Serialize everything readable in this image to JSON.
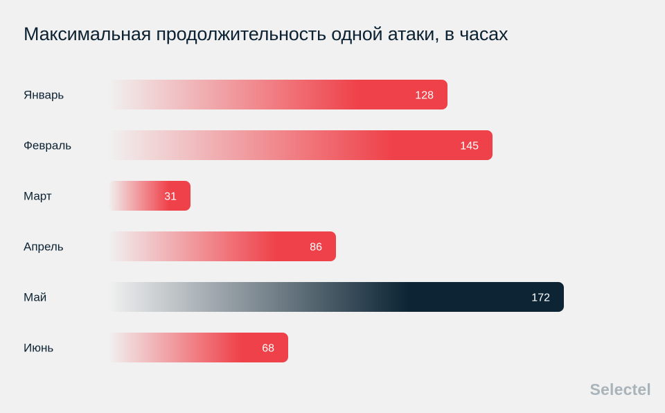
{
  "chart_data": {
    "type": "bar",
    "orientation": "horizontal",
    "title": "Максимальная продолжительность одной атаки, в часах",
    "categories": [
      "Январь",
      "Февраль",
      "Март",
      "Апрель",
      "Май",
      "Июнь"
    ],
    "values": [
      128,
      145,
      31,
      86,
      172,
      68
    ],
    "highlight_index": 4,
    "colors": {
      "bar": "#ef4149",
      "highlight": "#0c2434",
      "background": "#f1f1f1",
      "text": "#0c2232"
    },
    "grid": false,
    "legend": "none"
  },
  "brand": {
    "logo_text": "Selectel"
  }
}
